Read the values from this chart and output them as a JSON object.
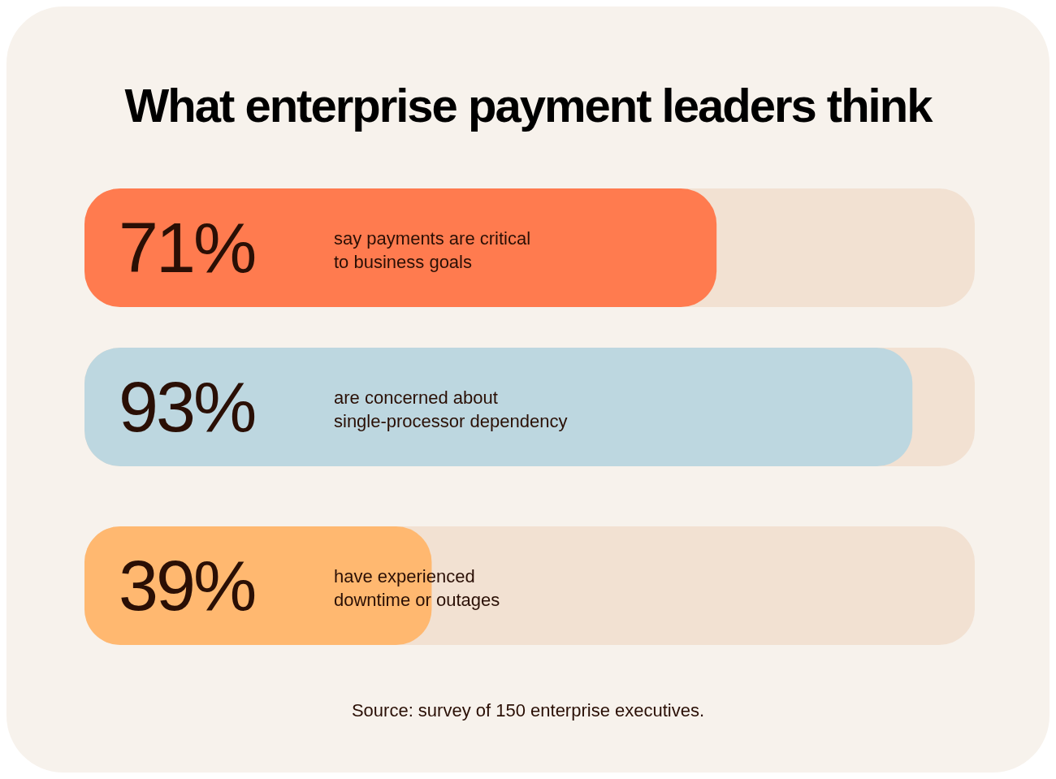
{
  "chart_data": {
    "type": "bar",
    "orientation": "horizontal",
    "title": "What enterprise payment leaders think",
    "categories": [
      "say payments are critical\nto business goals",
      "are concerned about\nsingle-processor dependency",
      "have experienced\ndowntime or outages"
    ],
    "values": [
      71,
      93,
      39
    ],
    "colors": [
      "#ff7b4f",
      "#bdd7e0",
      "#ffb870"
    ],
    "value_labels": [
      "71%",
      "93%",
      "39%"
    ],
    "xlim": [
      0,
      100
    ],
    "annotations": [
      "Source: survey of 150 enterprise executives."
    ]
  }
}
